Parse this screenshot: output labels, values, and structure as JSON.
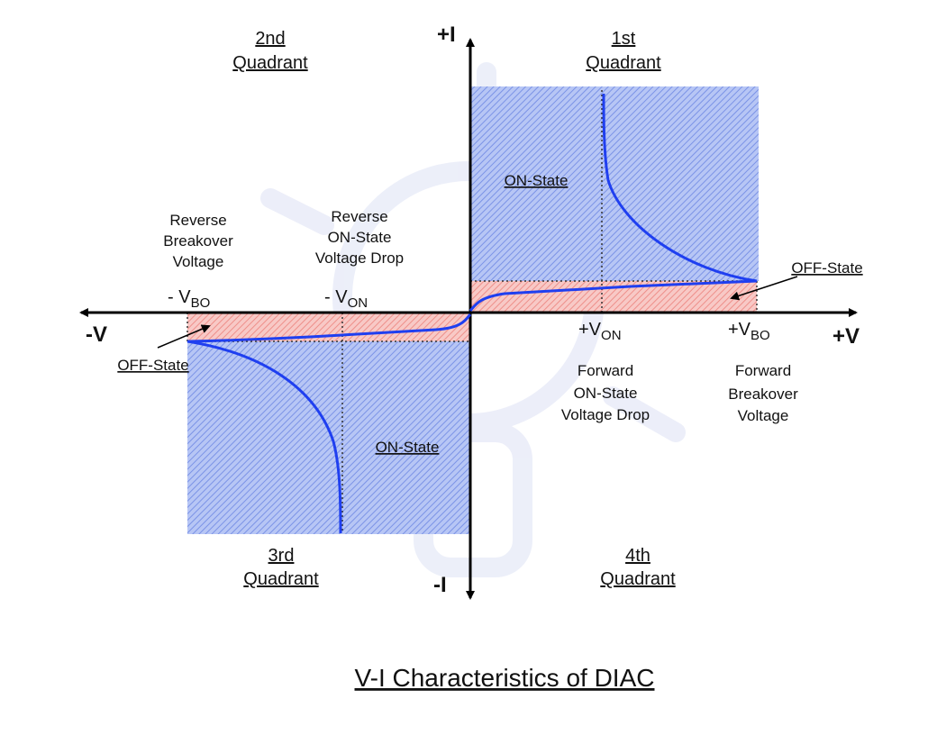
{
  "title": "V-I Characteristics of DIAC",
  "axes": {
    "pos_i": "+I",
    "neg_i": "-I",
    "pos_v": "+V",
    "neg_v": "-V"
  },
  "quadrants": {
    "q1": {
      "ordinal": "1st",
      "word": "Quadrant"
    },
    "q2": {
      "ordinal": "2nd",
      "word": "Quadrant"
    },
    "q3": {
      "ordinal": "3rd",
      "word": "Quadrant"
    },
    "q4": {
      "ordinal": "4th",
      "word": "Quadrant"
    }
  },
  "states": {
    "on_state_q1": "ON-State",
    "on_state_q3": "ON-State",
    "off_state_right": "OFF-State",
    "off_state_left": "OFF-State"
  },
  "voltage_labels": {
    "neg_vbo": {
      "main": "- V",
      "sub": "BO"
    },
    "neg_von": {
      "main": "- V",
      "sub": "ON"
    },
    "pos_von": {
      "main": "+V",
      "sub": "ON"
    },
    "pos_vbo": {
      "main": "+V",
      "sub": "BO"
    }
  },
  "descriptions": {
    "reverse_breakover": [
      "Reverse",
      "Breakover",
      "Voltage"
    ],
    "reverse_on_drop": [
      "Reverse",
      "ON-State",
      "Voltage Drop"
    ],
    "forward_on_drop": [
      "Forward",
      "ON-State",
      "Voltage Drop"
    ],
    "forward_breakover": [
      "Forward",
      "Breakover",
      "Voltage"
    ]
  },
  "colors": {
    "on_region": "#8aa3ec",
    "off_region": "#f3a7a3",
    "curve": "#1f3ff0",
    "axis": "#000000"
  }
}
